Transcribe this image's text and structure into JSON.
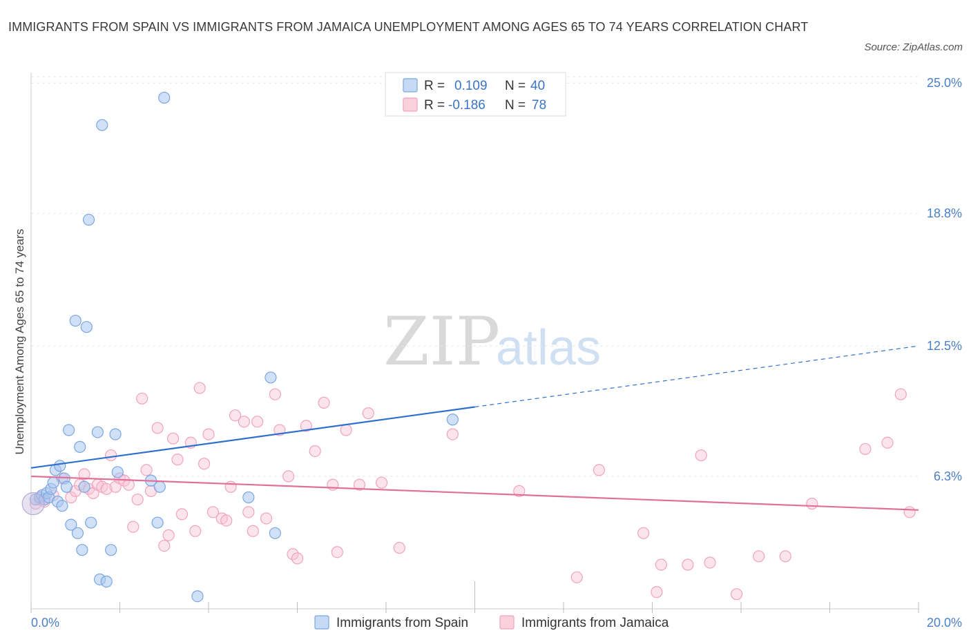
{
  "title": "IMMIGRANTS FROM SPAIN VS IMMIGRANTS FROM JAMAICA UNEMPLOYMENT AMONG AGES 65 TO 74 YEARS CORRELATION CHART",
  "source": "Source: ZipAtlas.com",
  "watermark": {
    "zip": "ZIP",
    "atlas": "atlas"
  },
  "colors": {
    "spain": "#7aa6e0",
    "spain_line": "#2f6fcc",
    "jamaica": "#f0a3bd",
    "jamaica_line": "#e07099",
    "grid": "#e6e6e6",
    "axis_label": "#4a7fc7"
  },
  "legend": {
    "spain": {
      "r_label": "R = ",
      "r_value": "0.109",
      "n_label": "N = ",
      "n_value": "40"
    },
    "jamaica": {
      "r_label": "R = ",
      "r_value": "-0.186",
      "n_label": "N = ",
      "n_value": "78"
    }
  },
  "chart_data": {
    "type": "scatter",
    "title": "IMMIGRANTS FROM SPAIN VS IMMIGRANTS FROM JAMAICA UNEMPLOYMENT AMONG AGES 65 TO 74 YEARS CORRELATION CHART",
    "xlabel": "",
    "ylabel": "Unemployment Among Ages 65 to 74 years",
    "xlim": [
      0,
      20
    ],
    "ylim": [
      0,
      25.5
    ],
    "x_tick_labels": [
      "0.0%",
      "20.0%"
    ],
    "y_ticks": [
      6.3,
      12.5,
      18.8,
      25.0
    ],
    "y_tick_labels": [
      "6.3%",
      "12.5%",
      "18.8%",
      "25.0%"
    ],
    "legend_position": "top-center",
    "series": [
      {
        "name": "Immigrants from Spain",
        "r": 0.109,
        "n": 40,
        "trend": {
          "x0": 0,
          "y0": 6.7,
          "x1": 10,
          "y1": 9.6,
          "dashed_to_x": 20,
          "dashed_to_y": 12.5
        },
        "points": [
          [
            0.1,
            5.2
          ],
          [
            0.2,
            5.3
          ],
          [
            0.25,
            5.4
          ],
          [
            0.3,
            5.2
          ],
          [
            0.35,
            5.5
          ],
          [
            0.4,
            5.3
          ],
          [
            0.45,
            5.7
          ],
          [
            0.5,
            6.0
          ],
          [
            0.55,
            6.6
          ],
          [
            0.6,
            5.1
          ],
          [
            0.65,
            6.8
          ],
          [
            0.7,
            4.9
          ],
          [
            0.75,
            6.2
          ],
          [
            0.8,
            5.8
          ],
          [
            0.85,
            8.5
          ],
          [
            0.9,
            4.0
          ],
          [
            1.0,
            13.7
          ],
          [
            1.05,
            3.6
          ],
          [
            1.1,
            7.7
          ],
          [
            1.15,
            2.8
          ],
          [
            1.2,
            5.8
          ],
          [
            1.25,
            13.4
          ],
          [
            1.3,
            18.5
          ],
          [
            1.35,
            4.1
          ],
          [
            1.5,
            8.4
          ],
          [
            1.55,
            1.4
          ],
          [
            1.6,
            23.0
          ],
          [
            1.7,
            1.3
          ],
          [
            1.8,
            2.8
          ],
          [
            1.9,
            8.3
          ],
          [
            1.95,
            6.5
          ],
          [
            2.7,
            6.1
          ],
          [
            2.85,
            4.1
          ],
          [
            2.9,
            5.8
          ],
          [
            3.0,
            24.3
          ],
          [
            3.75,
            0.6
          ],
          [
            4.9,
            5.3
          ],
          [
            5.4,
            11.0
          ],
          [
            5.5,
            3.6
          ],
          [
            9.5,
            9.0
          ]
        ]
      },
      {
        "name": "Immigrants from Jamaica",
        "r": -0.186,
        "n": 78,
        "trend": {
          "x0": 0,
          "y0": 6.3,
          "x1": 20,
          "y1": 4.7
        },
        "points": [
          [
            0.1,
            5.0
          ],
          [
            0.2,
            5.2
          ],
          [
            0.3,
            5.1
          ],
          [
            0.5,
            5.4
          ],
          [
            0.7,
            6.2
          ],
          [
            0.9,
            5.3
          ],
          [
            1.0,
            5.6
          ],
          [
            1.1,
            5.9
          ],
          [
            1.2,
            6.4
          ],
          [
            1.3,
            5.7
          ],
          [
            1.4,
            5.5
          ],
          [
            1.5,
            5.9
          ],
          [
            1.6,
            5.8
          ],
          [
            1.7,
            5.7
          ],
          [
            1.8,
            7.3
          ],
          [
            1.9,
            5.8
          ],
          [
            2.0,
            6.2
          ],
          [
            2.1,
            6.1
          ],
          [
            2.2,
            5.9
          ],
          [
            2.3,
            3.9
          ],
          [
            2.4,
            5.2
          ],
          [
            2.5,
            10.0
          ],
          [
            2.6,
            6.6
          ],
          [
            2.7,
            5.6
          ],
          [
            2.85,
            8.6
          ],
          [
            3.0,
            3.0
          ],
          [
            3.1,
            3.5
          ],
          [
            3.2,
            8.1
          ],
          [
            3.3,
            7.1
          ],
          [
            3.4,
            4.5
          ],
          [
            3.6,
            7.9
          ],
          [
            3.7,
            3.7
          ],
          [
            3.8,
            10.5
          ],
          [
            3.9,
            6.9
          ],
          [
            4.0,
            8.3
          ],
          [
            4.1,
            4.6
          ],
          [
            4.3,
            4.3
          ],
          [
            4.4,
            4.2
          ],
          [
            4.5,
            5.8
          ],
          [
            4.6,
            9.2
          ],
          [
            4.8,
            8.9
          ],
          [
            4.9,
            4.6
          ],
          [
            5.0,
            3.7
          ],
          [
            5.1,
            8.9
          ],
          [
            5.3,
            4.3
          ],
          [
            5.5,
            10.2
          ],
          [
            5.6,
            8.5
          ],
          [
            5.8,
            6.3
          ],
          [
            5.9,
            2.6
          ],
          [
            6.0,
            2.4
          ],
          [
            6.2,
            8.7
          ],
          [
            6.4,
            7.5
          ],
          [
            6.6,
            9.8
          ],
          [
            6.8,
            5.9
          ],
          [
            6.9,
            2.7
          ],
          [
            7.1,
            8.5
          ],
          [
            7.4,
            5.9
          ],
          [
            7.6,
            9.3
          ],
          [
            7.9,
            6.0
          ],
          [
            8.3,
            2.9
          ],
          [
            9.5,
            8.3
          ],
          [
            11.0,
            5.6
          ],
          [
            12.3,
            1.5
          ],
          [
            12.8,
            6.6
          ],
          [
            13.8,
            3.6
          ],
          [
            14.1,
            0.8
          ],
          [
            14.2,
            2.1
          ],
          [
            14.8,
            2.1
          ],
          [
            15.1,
            7.3
          ],
          [
            15.3,
            2.2
          ],
          [
            15.9,
            0.7
          ],
          [
            16.4,
            2.5
          ],
          [
            17.0,
            2.5
          ],
          [
            17.6,
            5.0
          ],
          [
            18.8,
            7.6
          ],
          [
            19.3,
            7.9
          ],
          [
            19.6,
            10.2
          ],
          [
            19.8,
            4.6
          ]
        ]
      }
    ]
  },
  "bottom_legend": {
    "spain": "Immigrants from Spain",
    "jamaica": "Immigrants from Jamaica"
  }
}
